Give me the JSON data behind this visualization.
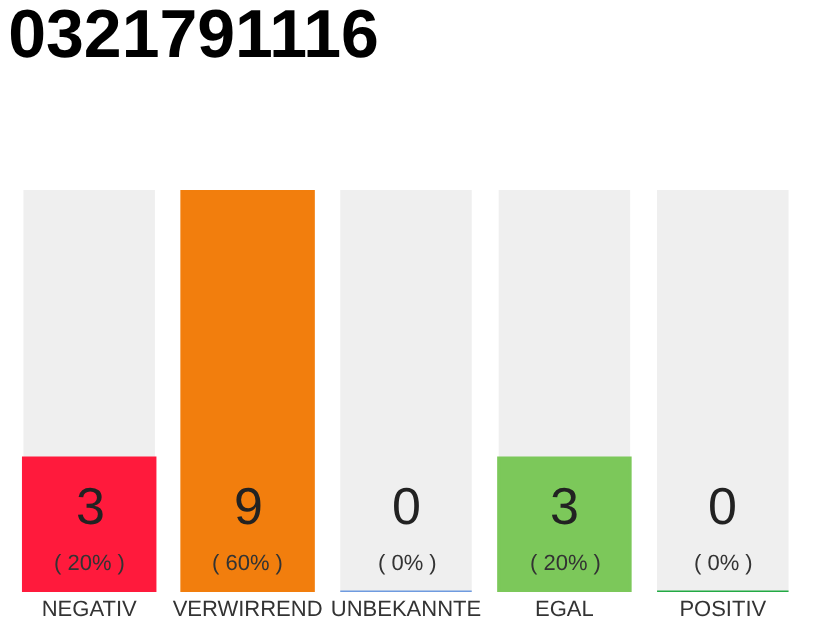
{
  "chart_data": {
    "type": "bar",
    "title": "0321791116",
    "categories": [
      "NEGATIV",
      "VERWIRREND",
      "UNBEKANNTE",
      "EGAL",
      "POSITIV"
    ],
    "values": [
      3,
      9,
      0,
      3,
      0
    ],
    "colors": [
      "#ff1a3c",
      "#f27e0d",
      "#6f9be0",
      "#7cc85a",
      "#22aa44"
    ],
    "value_labels": [
      "3\n( 20% )",
      "9\n( 60% )",
      "0\n( 0% )",
      "3\n( 20% )",
      "0\n( 0% )"
    ],
    "ylim": [
      0,
      9
    ],
    "grid": false,
    "legend": false
  }
}
